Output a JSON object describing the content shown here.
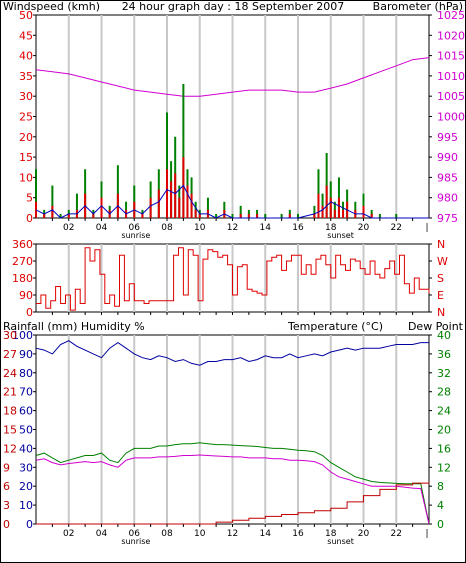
{
  "title": "24 hour graph day : 18 September 2007",
  "colors": {
    "wind": "#e00000",
    "gust": "#008000",
    "avg": "#0000c0",
    "barometer": "#d000d0",
    "direction": "#e00000",
    "rain": "#c00000",
    "humidity": "#0000a0",
    "temperature": "#008000",
    "dewpoint": "#d000d0",
    "grid": "#c8c8c8"
  },
  "chart_data": [
    {
      "type": "line",
      "id": "wind-barometer",
      "title": "24 hour graph day : 18 September 2007",
      "ylabel": "Windspeed (kmh)",
      "y2label": "Barometer (hPa)",
      "ylim": [
        0,
        50
      ],
      "y2lim": [
        975,
        1025
      ],
      "yticks": [
        "0",
        "5",
        "10",
        "15",
        "20",
        "25",
        "30",
        "35",
        "40",
        "45",
        "50"
      ],
      "y2ticks": [
        "975",
        "980",
        "985",
        "990",
        "995",
        "1000",
        "1005",
        "1010",
        "1015",
        "1020",
        "1025"
      ],
      "xlim": [
        0,
        24
      ],
      "xticks": [
        "02",
        "04",
        "06",
        "08",
        "10",
        "12",
        "14",
        "16",
        "18",
        "20",
        "22"
      ],
      "markers": [
        "sunrise",
        "sunset"
      ],
      "sunrise_hour": 6.1,
      "sunset_hour": 18.6,
      "series": [
        {
          "name": "Barometer (hPa)",
          "x": [
            0,
            1,
            2,
            3,
            4,
            5,
            6,
            7,
            8,
            9,
            10,
            11,
            12,
            13,
            14,
            15,
            16,
            17,
            18,
            19,
            20,
            21,
            22,
            23,
            24
          ],
          "values": [
            1011.5,
            1011,
            1010.5,
            1009.5,
            1008.5,
            1007.5,
            1006.5,
            1006,
            1005.5,
            1005,
            1005,
            1005.5,
            1006,
            1006.5,
            1006.5,
            1006.5,
            1006,
            1006,
            1007,
            1008,
            1009.5,
            1011,
            1012.5,
            1014,
            1014.5
          ]
        },
        {
          "name": "Gust",
          "x": [
            0,
            0.5,
            1,
            1.5,
            2,
            2.5,
            3,
            3.5,
            4,
            4.5,
            5,
            5.5,
            6,
            6.5,
            7,
            7.5,
            8,
            8.25,
            8.5,
            8.75,
            9,
            9.25,
            9.5,
            9.75,
            10,
            10.5,
            11,
            11.5,
            12,
            12.5,
            13,
            13.5,
            14,
            14.5,
            15,
            15.5,
            16,
            16.5,
            17,
            17.25,
            17.5,
            17.75,
            18,
            18.25,
            18.5,
            18.75,
            19,
            19.5,
            20,
            20.5,
            21,
            21.5,
            22,
            22.5,
            23,
            23.5,
            24
          ],
          "values": [
            12,
            2,
            8,
            1,
            2,
            6,
            12,
            2,
            9,
            3,
            13,
            4,
            8,
            2,
            9,
            12,
            26,
            14,
            20,
            8,
            33,
            12,
            10,
            4,
            2,
            5,
            1,
            4,
            1,
            3,
            2,
            2,
            1,
            0,
            1,
            2,
            1,
            0,
            3,
            12,
            6,
            16,
            9,
            4,
            10,
            4,
            7,
            4,
            6,
            2,
            1,
            0,
            1,
            0,
            0,
            0,
            0
          ]
        },
        {
          "name": "Windspeed",
          "x": [
            0,
            0.5,
            1,
            1.5,
            2,
            2.5,
            3,
            3.5,
            4,
            4.5,
            5,
            5.5,
            6,
            6.5,
            7,
            7.5,
            8,
            8.25,
            8.5,
            8.75,
            9,
            9.25,
            9.5,
            9.75,
            10,
            10.5,
            11,
            11.5,
            12,
            12.5,
            13,
            13.5,
            14,
            14.5,
            15,
            15.5,
            16,
            16.5,
            17,
            17.25,
            17.5,
            17.75,
            18,
            18.25,
            18.5,
            18.75,
            19,
            19.5,
            20,
            20.5,
            21,
            21.5,
            22,
            22.5,
            23,
            23.5,
            24
          ],
          "values": [
            4,
            1,
            3,
            0,
            1,
            2,
            6,
            1,
            5,
            2,
            6,
            2,
            4,
            1,
            5,
            7,
            12,
            9,
            11,
            5,
            15,
            8,
            6,
            2,
            1,
            2,
            0,
            2,
            0,
            1,
            1,
            1,
            0,
            0,
            0,
            1,
            0,
            0,
            1,
            6,
            3,
            8,
            5,
            2,
            5,
            2,
            4,
            2,
            3,
            1,
            0,
            0,
            0,
            0,
            0,
            0,
            0
          ]
        },
        {
          "name": "Average",
          "x": [
            0,
            0.5,
            1,
            1.5,
            2,
            2.5,
            3,
            3.5,
            4,
            4.5,
            5,
            5.5,
            6,
            6.5,
            7,
            7.5,
            8,
            8.5,
            9,
            9.5,
            10,
            10.5,
            11,
            11.5,
            12,
            13,
            14,
            15,
            16,
            17,
            17.5,
            18,
            18.5,
            19,
            19.5,
            20,
            20.5,
            21,
            22,
            23,
            24
          ],
          "values": [
            2,
            1,
            2,
            0,
            1,
            1,
            3,
            1,
            3,
            1,
            3,
            1,
            2,
            1,
            3,
            4,
            7,
            6,
            8,
            4,
            1,
            1,
            0,
            1,
            0,
            0,
            0,
            0,
            0,
            1,
            2,
            4,
            3,
            2,
            1,
            1,
            0,
            0,
            0,
            0,
            0
          ]
        }
      ]
    },
    {
      "type": "line",
      "id": "wind-direction",
      "ylim": [
        0,
        360
      ],
      "yticks": [
        "0",
        "90",
        "180",
        "270",
        "360"
      ],
      "y2ticks": [
        "N",
        "E",
        "S",
        "W",
        "N"
      ],
      "xlim": [
        0,
        24
      ],
      "series": [
        {
          "name": "Wind direction",
          "x": [
            0,
            0.3,
            0.6,
            0.9,
            1.2,
            1.5,
            1.8,
            2.1,
            2.4,
            2.7,
            3,
            3.3,
            3.6,
            3.9,
            4.2,
            4.5,
            4.8,
            5.1,
            5.4,
            5.7,
            6,
            6.3,
            6.6,
            6.9,
            7.2,
            7.5,
            7.8,
            8.1,
            8.4,
            8.7,
            9,
            9.3,
            9.6,
            9.9,
            10.2,
            10.5,
            10.8,
            11.1,
            11.4,
            11.7,
            12,
            12.3,
            12.6,
            12.9,
            13.2,
            13.5,
            13.8,
            14.1,
            14.4,
            14.7,
            15,
            15.3,
            15.6,
            15.9,
            16.2,
            16.5,
            16.8,
            17.1,
            17.4,
            17.7,
            18,
            18.3,
            18.6,
            18.9,
            19.2,
            19.5,
            19.8,
            20.1,
            20.4,
            20.7,
            21,
            21.3,
            21.6,
            21.9,
            22.2,
            22.5,
            22.8,
            23.1,
            23.4,
            23.7,
            24
          ],
          "values": [
            45,
            90,
            20,
            60,
            135,
            45,
            90,
            10,
            120,
            45,
            340,
            270,
            330,
            200,
            45,
            90,
            30,
            300,
            60,
            150,
            60,
            60,
            45,
            60,
            60,
            60,
            60,
            60,
            300,
            340,
            90,
            330,
            300,
            60,
            280,
            330,
            320,
            290,
            300,
            250,
            90,
            240,
            250,
            120,
            110,
            100,
            90,
            270,
            290,
            300,
            220,
            270,
            300,
            300,
            200,
            250,
            200,
            280,
            300,
            250,
            180,
            300,
            250,
            220,
            280,
            270,
            230,
            200,
            270,
            200,
            180,
            230,
            270,
            200,
            300,
            150,
            100,
            180,
            120,
            120,
            100
          ]
        }
      ]
    },
    {
      "type": "line",
      "id": "rain-humidity-temperature",
      "ylabel": "Rainfall (mm)  Humidity %",
      "y2label": "Temperature (°C)",
      "y2label_extra": "Dew Point",
      "ylim": [
        0,
        100
      ],
      "yticks_humidity": [
        "0",
        "10",
        "20",
        "30",
        "40",
        "50",
        "60",
        "70",
        "80",
        "90",
        "100"
      ],
      "yticks_rain": [
        "0",
        "3",
        "6",
        "9",
        "12",
        "15",
        "18",
        "21",
        "24",
        "27",
        "30"
      ],
      "y2lim": [
        0,
        40
      ],
      "y2ticks": [
        "0",
        "4",
        "8",
        "12",
        "16",
        "20",
        "24",
        "28",
        "32",
        "36",
        "40"
      ],
      "xlim": [
        0,
        24
      ],
      "xticks": [
        "02",
        "04",
        "06",
        "08",
        "10",
        "12",
        "14",
        "16",
        "18",
        "20",
        "22"
      ],
      "markers": [
        "sunrise",
        "sunset"
      ],
      "sunrise_hour": 6.1,
      "sunset_hour": 18.6,
      "series": [
        {
          "name": "Humidity %",
          "x": [
            0,
            0.5,
            1,
            1.5,
            2,
            2.5,
            3,
            3.5,
            4,
            4.5,
            5,
            5.5,
            6,
            6.5,
            7,
            7.5,
            8,
            8.5,
            9,
            9.5,
            10,
            10.5,
            11,
            11.5,
            12,
            12.5,
            13,
            13.5,
            14,
            14.5,
            15,
            15.5,
            16,
            16.5,
            17,
            17.5,
            18,
            18.5,
            19,
            19.5,
            20,
            20.5,
            21,
            21.5,
            22,
            22.5,
            23,
            23.5,
            24
          ],
          "values": [
            93,
            92,
            90,
            95,
            97,
            94,
            92,
            90,
            88,
            93,
            96,
            93,
            90,
            88,
            87,
            89,
            88,
            86,
            87,
            85,
            84,
            86,
            86,
            87,
            87,
            88,
            86,
            87,
            89,
            88,
            88,
            90,
            88,
            89,
            90,
            89,
            91,
            92,
            93,
            92,
            93,
            93,
            93,
            94,
            95,
            95,
            95,
            96,
            96
          ]
        },
        {
          "name": "Temperature (°C)",
          "x": [
            0,
            0.5,
            1,
            1.5,
            2,
            2.5,
            3,
            3.5,
            4,
            4.5,
            5,
            5.5,
            6,
            6.5,
            7,
            7.5,
            8,
            8.5,
            9,
            9.5,
            10,
            10.5,
            11,
            11.5,
            12,
            12.5,
            13,
            13.5,
            14,
            14.5,
            15,
            15.5,
            16,
            16.5,
            17,
            17.5,
            18,
            18.5,
            19,
            19.5,
            20,
            20.5,
            21,
            21.5,
            22,
            22.5,
            23,
            23.5,
            24
          ],
          "values": [
            14.5,
            15,
            14,
            13,
            13.5,
            14,
            14.5,
            14.5,
            15,
            13.5,
            13,
            15,
            16,
            16,
            16,
            16.5,
            16.5,
            16.8,
            17,
            17,
            17.2,
            17,
            16.8,
            16.8,
            16.7,
            16.6,
            16.5,
            16.4,
            16.2,
            16,
            16,
            15.8,
            15.6,
            15.5,
            15.3,
            14.5,
            13,
            12,
            11,
            10,
            9.5,
            9,
            8.8,
            8.7,
            8.6,
            8.5,
            8.5,
            8.5,
            0
          ]
        },
        {
          "name": "Dew Point",
          "x": [
            0,
            0.5,
            1,
            1.5,
            2,
            2.5,
            3,
            3.5,
            4,
            4.5,
            5,
            5.5,
            6,
            6.5,
            7,
            7.5,
            8,
            8.5,
            9,
            9.5,
            10,
            10.5,
            11,
            11.5,
            12,
            12.5,
            13,
            13.5,
            14,
            14.5,
            15,
            15.5,
            16,
            16.5,
            17,
            17.5,
            18,
            18.5,
            19,
            19.5,
            20,
            20.5,
            21,
            21.5,
            22,
            22.5,
            23,
            23.5,
            24
          ],
          "values": [
            13.5,
            13.8,
            13,
            12.5,
            12.8,
            13,
            13.2,
            13,
            13.2,
            12.5,
            12,
            13.5,
            14,
            14,
            14,
            14.2,
            14.2,
            14.3,
            14.5,
            14.5,
            14.6,
            14.5,
            14.4,
            14.3,
            14.2,
            14.2,
            14,
            14,
            14,
            13.8,
            13.8,
            13.5,
            13.5,
            13.4,
            13.2,
            12.5,
            11,
            10,
            9.5,
            9,
            8.5,
            8,
            8,
            8,
            8,
            7.8,
            7.6,
            7.5,
            0
          ]
        },
        {
          "name": "Rainfall (mm)",
          "x": [
            0,
            10,
            11,
            12,
            13,
            14,
            15,
            16,
            17,
            18,
            19,
            20,
            21,
            22,
            23,
            24
          ],
          "values": [
            0,
            0,
            0.3,
            0.6,
            0.9,
            1.2,
            1.5,
            1.8,
            2.1,
            2.5,
            3.5,
            4.5,
            5.5,
            6.2,
            6.5,
            6.6
          ]
        }
      ]
    }
  ]
}
